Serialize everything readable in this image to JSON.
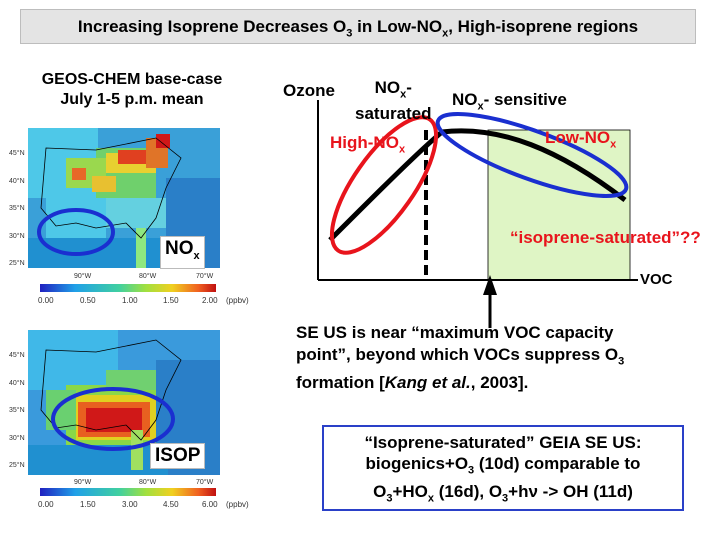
{
  "slide": {
    "title": {
      "a": "Increasing Isoprene Decreases O",
      "a_sub": "3",
      "b": " in Low-NO",
      "b_sub": "x",
      "c": ", High-isoprene regions"
    },
    "case_label_line1": "GEOS-CHEM base-case",
    "case_label_line2": "July 1-5 p.m. mean",
    "map_top": {
      "tag": "NO",
      "tag_sub": "x",
      "lat_labels": [
        "45°N",
        "40°N",
        "35°N",
        "30°N",
        "25°N"
      ],
      "lon_labels": [
        "90°W",
        "80°W",
        "70°W"
      ],
      "colorbar_ticks": [
        "0.00",
        "0.50",
        "1.00",
        "1.50",
        "2.00"
      ],
      "colorbar_unit": "(ppbv)"
    },
    "map_bottom": {
      "tag": "ISOP",
      "lat_labels": [
        "45°N",
        "40°N",
        "35°N",
        "30°N",
        "25°N"
      ],
      "lon_labels": [
        "90°W",
        "80°W",
        "70°W"
      ],
      "colorbar_ticks": [
        "0.00",
        "1.50",
        "3.00",
        "4.50",
        "6.00"
      ],
      "colorbar_unit": "(ppbv)"
    },
    "diagram": {
      "ozone": "Ozone",
      "nox_sat_line1": "NO",
      "nox_sat_line1_sub": "x",
      "nox_sat_line1_tail": "-",
      "nox_sat_line2": "saturated",
      "nox_sens": "NO",
      "nox_sens_sub": "x",
      "nox_sens_tail": "- sensitive",
      "high_nox": "High-NO",
      "high_nox_sub": "x",
      "low_nox": "Low-NO",
      "low_nox_sub": "x",
      "iso_sat": "“isoprene-saturated”??",
      "voc": "VOC",
      "colors": {
        "red": "#e8141c",
        "blue": "#1a2fd0",
        "green": "#dff5c5"
      }
    },
    "se_text": {
      "l1": "SE US is near “maximum VOC capacity",
      "l2a": "point”, beyond which VOCs suppress O",
      "l2_sub": "3",
      "l3a": "formation [",
      "l3_italic": "Kang et al.",
      "l3b": ", 2003]."
    },
    "geia": {
      "l1": "“Isoprene-saturated” GEIA SE US:",
      "l2a": "biogenics+O",
      "l2_sub": "3",
      "l2b": " (10d) comparable to",
      "l3a": "O",
      "l3_sub1": "3",
      "l3b": "+HO",
      "l3_sub2": "x",
      "l3c": " (16d), O",
      "l3_sub3": "3",
      "l3d": "+hν -> OH (11d)"
    }
  }
}
